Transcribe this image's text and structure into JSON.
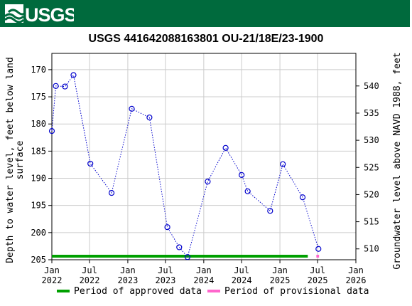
{
  "brand": {
    "name": "USGS",
    "color": "#006a3d"
  },
  "chart_data": {
    "type": "line",
    "title": "USGS 441642088163801 OU-21/18E/23-1900",
    "ylabel_left_line1": "Depth to water level, feet below land",
    "ylabel_left_line2": "surface",
    "ylabel_right": "Groundwater level above NAVD 1988, feet",
    "left_axis": {
      "ylim": [
        205,
        167
      ],
      "ticks": [
        170,
        175,
        180,
        185,
        190,
        195,
        200,
        205
      ],
      "inverted": true
    },
    "right_axis": {
      "ylim": [
        508,
        546
      ],
      "ticks": [
        510,
        515,
        520,
        525,
        530,
        535,
        540
      ]
    },
    "x_axis": {
      "range": [
        "2022-01-01",
        "2026-01-01"
      ],
      "ticks": [
        {
          "date": "2022-01-01",
          "line1": "Jan",
          "line2": "2022"
        },
        {
          "date": "2022-07-01",
          "line1": "Jul",
          "line2": "2022"
        },
        {
          "date": "2023-01-01",
          "line1": "Jan",
          "line2": "2023"
        },
        {
          "date": "2023-07-01",
          "line1": "Jul",
          "line2": "2023"
        },
        {
          "date": "2024-01-01",
          "line1": "Jan",
          "line2": "2024"
        },
        {
          "date": "2024-07-01",
          "line1": "Jul",
          "line2": "2024"
        },
        {
          "date": "2025-01-01",
          "line1": "Jan",
          "line2": "2025"
        },
        {
          "date": "2025-07-01",
          "line1": "Jul",
          "line2": "2025"
        },
        {
          "date": "2026-01-01",
          "line1": "Jan",
          "line2": "2026"
        }
      ]
    },
    "grid": true,
    "series": [
      {
        "style": "dotted line with open circle markers",
        "color": "#0000cc",
        "points": [
          {
            "x": "2022-01-01",
            "y": 181.3
          },
          {
            "x": "2022-01-20",
            "y": 173.0
          },
          {
            "x": "2022-03-05",
            "y": 173.1
          },
          {
            "x": "2022-04-15",
            "y": 171.0
          },
          {
            "x": "2022-07-05",
            "y": 187.3
          },
          {
            "x": "2022-10-15",
            "y": 192.7
          },
          {
            "x": "2023-01-20",
            "y": 177.2
          },
          {
            "x": "2023-04-15",
            "y": 178.8
          },
          {
            "x": "2023-07-10",
            "y": 199.0
          },
          {
            "x": "2023-09-05",
            "y": 202.7
          },
          {
            "x": "2023-10-15",
            "y": 204.5
          },
          {
            "x": "2024-01-20",
            "y": 190.6
          },
          {
            "x": "2024-04-15",
            "y": 184.4
          },
          {
            "x": "2024-07-01",
            "y": 189.4
          },
          {
            "x": "2024-07-30",
            "y": 192.4
          },
          {
            "x": "2024-11-15",
            "y": 196.0
          },
          {
            "x": "2025-01-15",
            "y": 187.4
          },
          {
            "x": "2025-04-20",
            "y": 193.5
          },
          {
            "x": "2025-07-05",
            "y": 203.0
          }
        ]
      }
    ],
    "periods": [
      {
        "label": "Period of approved data",
        "color": "#00a000",
        "start": "2022-01-01",
        "end": "2025-05-15"
      },
      {
        "label": "Period of provisional data",
        "color": "#ff66cc",
        "start": "2025-06-25",
        "end": "2025-07-08"
      }
    ],
    "legend_placement": "bottom"
  }
}
